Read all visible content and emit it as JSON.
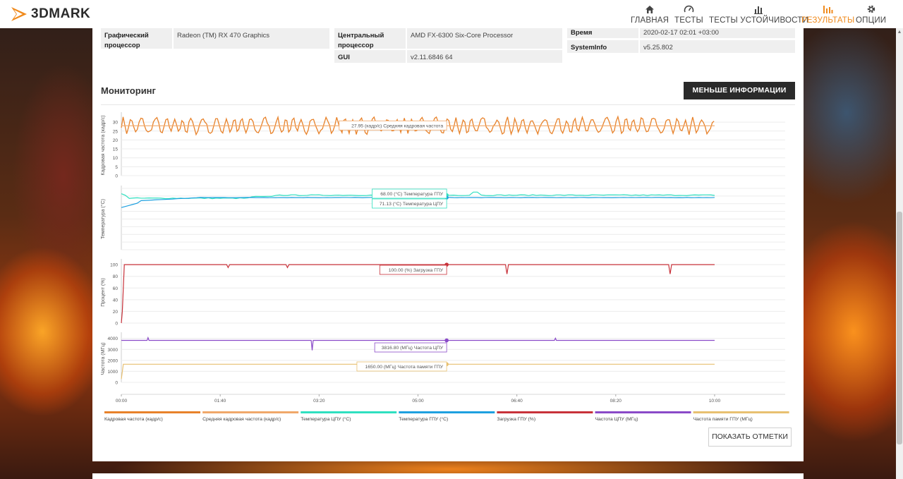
{
  "app": {
    "logo_text": "3DMARK"
  },
  "nav": [
    {
      "label": "ГЛАВНАЯ",
      "icon": "home-icon",
      "active": false
    },
    {
      "label": "ТЕСТЫ",
      "icon": "gauge-icon",
      "active": false
    },
    {
      "label": "ТЕСТЫ УСТОЙЧИВОСТИ",
      "icon": "stress-bars-icon",
      "active": false
    },
    {
      "label": "РЕЗУЛЬТАТЫ",
      "icon": "results-bars-icon",
      "active": true
    },
    {
      "label": "ОПЦИИ",
      "icon": "gear-icon",
      "active": false
    }
  ],
  "info": {
    "gpu_label": "Графический процессор",
    "gpu_value": "Radeon (TM) RX 470 Graphics",
    "cpu_label": "Центральный процессор",
    "cpu_value": "AMD FX-6300 Six-Core Processor",
    "gui_label": "GUI",
    "gui_value": "v2.11.6846 64",
    "time_label": "Время",
    "time_value": "2020-02-17 02:01 +03:00",
    "sysinfo_label": "SystemInfo",
    "sysinfo_value": "v5.25.802"
  },
  "monitoring": {
    "title": "Мониторинг",
    "less_info_label": "МЕНЬШЕ ИНФОРМАЦИИ",
    "show_marks_label": "ПОКАЗАТЬ ОТМЕТКИ"
  },
  "accent": "#f08a1c",
  "chart_data": {
    "type": "line",
    "x_axis": {
      "ticks": [
        "00:00",
        "01:40",
        "03:20",
        "05:00",
        "06:40",
        "08:20",
        "10:00"
      ],
      "tick_seconds": [
        0,
        100,
        200,
        300,
        400,
        500,
        600
      ],
      "range_seconds": [
        0,
        620
      ]
    },
    "marker_time_seconds": 329,
    "panels": [
      {
        "ylabel": "Кадровая частота (кадр/с)",
        "yticks": [
          0,
          5,
          10,
          15,
          20,
          25,
          30
        ],
        "ylim": [
          0,
          34
        ],
        "series": [
          {
            "name": "Кадровая частота (кадр/с)",
            "color": "#e8822a",
            "shape": "oscillating",
            "mean": 28,
            "amplitude": 4
          },
          {
            "name": "Средняя кадровая частота (кадр/с)",
            "color": "#f0a86a",
            "shape": "flat",
            "value": 27.95
          }
        ],
        "tooltips": [
          "27.95 (кадр/с) Средняя кадровая частота"
        ]
      },
      {
        "ylabel": "Температура (°C)",
        "yticks": [],
        "ylim": [
          0,
          80
        ],
        "series": [
          {
            "name": "Температура ЦПУ (°C)",
            "color": "#2fe0c0",
            "start": 73,
            "value": 71.13
          },
          {
            "name": "Температура ГПУ (°C)",
            "color": "#1ea0e0",
            "start": 55,
            "value": 68.0
          }
        ],
        "tooltips": [
          "68.00 (°C) Температура ГПУ",
          "71.13 (°C) Температура ЦПУ"
        ]
      },
      {
        "ylabel": "Процент (%)",
        "yticks": [
          0,
          20,
          40,
          60,
          80,
          100
        ],
        "ylim": [
          0,
          105
        ],
        "series": [
          {
            "name": "Загрузка ГПУ (%)",
            "color": "#c8323a",
            "value": 100.0,
            "dips_seconds": [
              108,
              168,
              390,
              555
            ]
          }
        ],
        "tooltips": [
          "100.00 (%) Загрузка ГПУ"
        ]
      },
      {
        "ylabel": "Частота (МГц)",
        "yticks": [
          0,
          1000,
          2000,
          3000,
          4000
        ],
        "ylim": [
          0,
          4300
        ],
        "series": [
          {
            "name": "Частота ЦПУ (МГц)",
            "color": "#8a4ac8",
            "value": 3816.8,
            "dip_seconds": 193
          },
          {
            "name": "Частота памяти ГПУ (МГц)",
            "color": "#e8c070",
            "value": 1650.0
          }
        ],
        "tooltips": [
          "3816.80 (МГц) Частота ЦПУ",
          "1650.00 (МГц) Частота памяти ГПУ"
        ]
      }
    ],
    "legend": [
      {
        "name": "Кадровая частота (кадр/с)",
        "color": "#e8822a"
      },
      {
        "name": "Средняя кадровая частота (кадр/с)",
        "color": "#f0a86a"
      },
      {
        "name": "Температура ЦПУ (°C)",
        "color": "#2fe0c0"
      },
      {
        "name": "Температура ГПУ (°C)",
        "color": "#1ea0e0"
      },
      {
        "name": "Загрузка ГПУ (%)",
        "color": "#c8323a"
      },
      {
        "name": "Частота ЦПУ (МГц)",
        "color": "#8a4ac8"
      },
      {
        "name": "Частота памяти ГПУ (МГц)",
        "color": "#e8c070"
      }
    ]
  }
}
